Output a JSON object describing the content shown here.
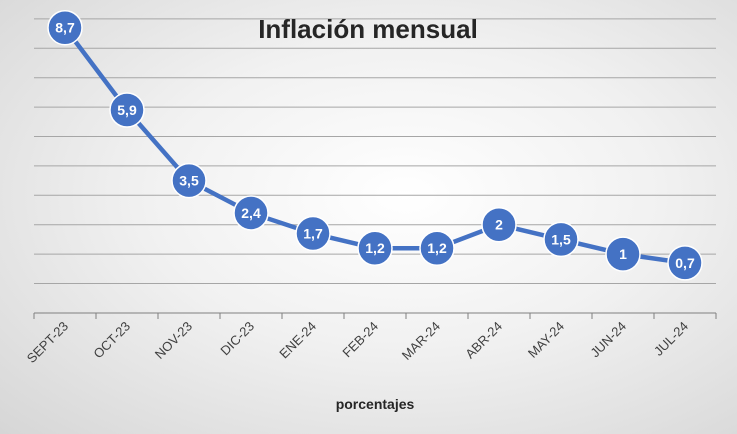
{
  "chart_data": {
    "type": "line",
    "title": "Inflación mensual",
    "xlabel": "porcentajes",
    "ylabel": "",
    "categories": [
      "SEPT-23",
      "OCT-23",
      "NOV-23",
      "DIC-23",
      "ENE-24",
      "FEB-24",
      "MAR-24",
      "ABR-24",
      "MAY-24",
      "JUN-24",
      "JUL-24"
    ],
    "series": [
      {
        "values": [
          8.7,
          5.9,
          3.5,
          2.4,
          1.7,
          1.2,
          1.2,
          2,
          1.5,
          1,
          0.7
        ],
        "labels": [
          "8,7",
          "5,9",
          "3,5",
          "2,4",
          "1,7",
          "1,2",
          "1,2",
          "2",
          "1,5",
          "1",
          "0,7"
        ],
        "color": "#4472C4"
      }
    ],
    "ylim": [
      -1,
      10
    ],
    "grid": true,
    "legend": "none"
  }
}
